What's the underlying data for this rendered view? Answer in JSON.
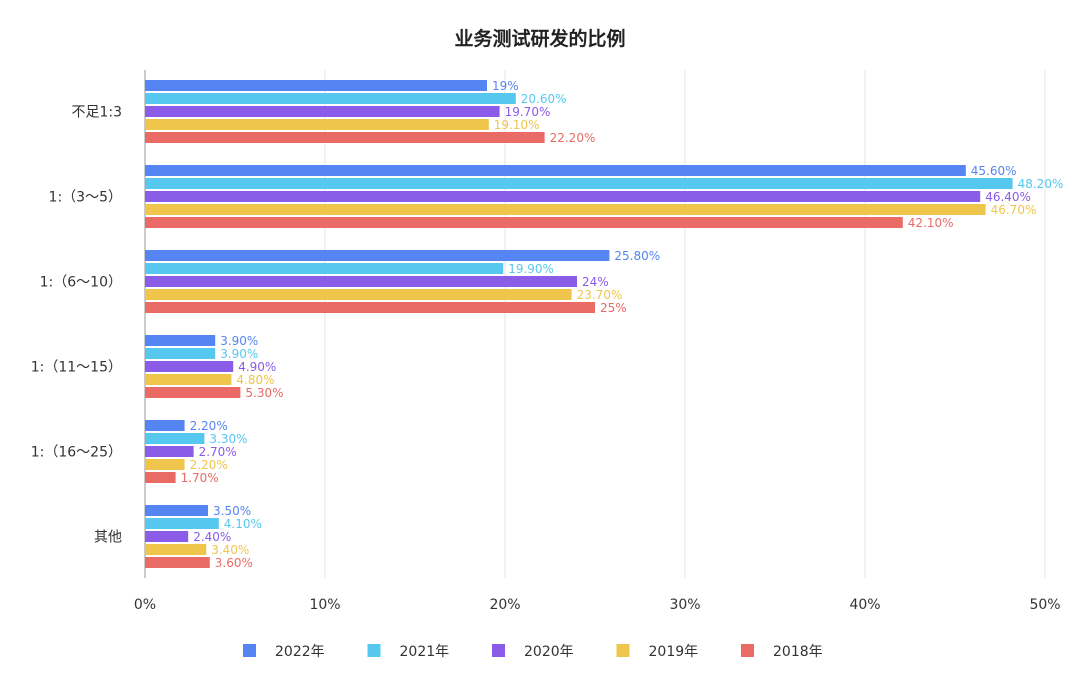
{
  "chart_data": {
    "type": "bar",
    "orientation": "horizontal",
    "title": "业务测试研发的比例",
    "categories": [
      "不足1:3",
      "1:（3～5）",
      "1:（6～10）",
      "1:（11～15）",
      "1:（16～25）",
      "其他"
    ],
    "series": [
      {
        "name": "2022年",
        "color": "#5585f2",
        "values": [
          19,
          45.6,
          25.8,
          3.9,
          2.2,
          3.5
        ],
        "labels": [
          "19%",
          "45.60%",
          "25.80%",
          "3.90%",
          "2.20%",
          "3.50%"
        ]
      },
      {
        "name": "2021年",
        "color": "#56c8ef",
        "values": [
          20.6,
          48.2,
          19.9,
          3.9,
          3.3,
          4.1
        ],
        "labels": [
          "20.60%",
          "48.20%",
          "19.90%",
          "3.90%",
          "3.30%",
          "4.10%"
        ]
      },
      {
        "name": "2020年",
        "color": "#8a5ce8",
        "values": [
          19.7,
          46.4,
          24,
          4.9,
          2.7,
          2.4
        ],
        "labels": [
          "19.70%",
          "46.40%",
          "24%",
          "4.90%",
          "2.70%",
          "2.40%"
        ]
      },
      {
        "name": "2019年",
        "color": "#efc54c",
        "values": [
          19.1,
          46.7,
          23.7,
          4.8,
          2.2,
          3.4
        ],
        "labels": [
          "19.10%",
          "46.70%",
          "23.70%",
          "4.80%",
          "2.20%",
          "3.40%"
        ]
      },
      {
        "name": "2018年",
        "color": "#ea6b65",
        "values": [
          22.2,
          42.1,
          25,
          5.3,
          1.7,
          3.6
        ],
        "labels": [
          "22.20%",
          "42.10%",
          "25%",
          "5.30%",
          "1.70%",
          "3.60%"
        ]
      }
    ],
    "xlim": [
      0,
      50
    ],
    "xticks": [
      0,
      10,
      20,
      30,
      40,
      50
    ],
    "xtick_labels": [
      "0%",
      "10%",
      "20%",
      "30%",
      "40%",
      "50%"
    ],
    "grid": true,
    "legend_position": "bottom-center"
  }
}
